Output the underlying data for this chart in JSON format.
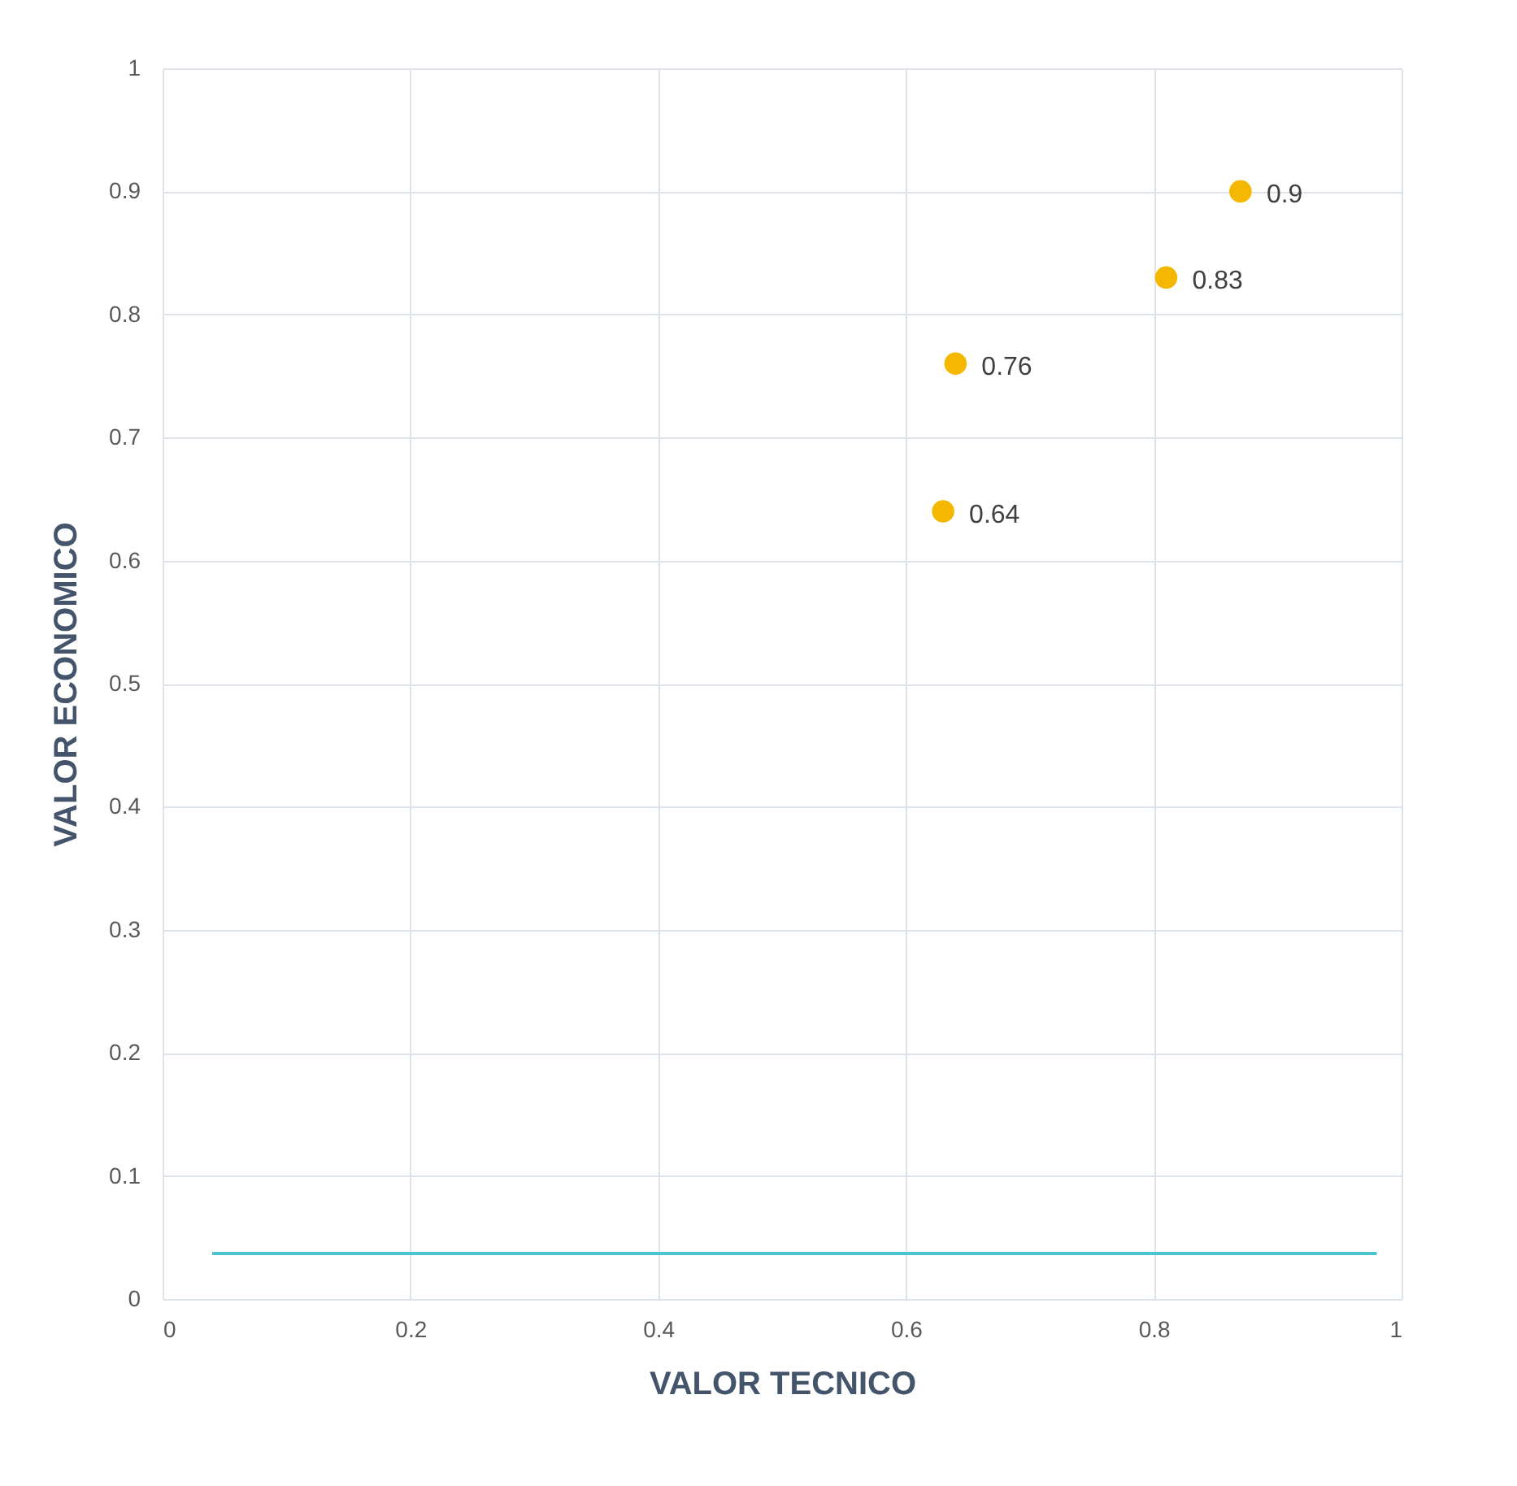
{
  "chart_data": {
    "type": "scatter",
    "xlabel": "VALOR TECNICO",
    "ylabel": "VALOR ECONOMICO",
    "xlim": [
      0,
      1
    ],
    "xticks": [
      0,
      0.2,
      0.4,
      0.6,
      0.8,
      1
    ],
    "ylim": [
      0,
      1
    ],
    "yticks": [
      0,
      0.1,
      0.2,
      0.3,
      0.4,
      0.5,
      0.6,
      0.7,
      0.8,
      0.9,
      1
    ],
    "grid": true,
    "series": [
      {
        "marker": "circle",
        "color": "#f5b800",
        "x": [
          0.87,
          0.81,
          0.64,
          0.63
        ],
        "values": [
          0.9,
          0.83,
          0.76,
          0.64
        ],
        "value_labels": [
          "0.9",
          "0.83",
          "0.76",
          "0.64"
        ]
      },
      {
        "type": "line",
        "color": "#4bc4d0",
        "x": [
          0.04,
          0.98
        ],
        "values": [
          0.037,
          0.037
        ],
        "line_style": "solid"
      }
    ]
  }
}
